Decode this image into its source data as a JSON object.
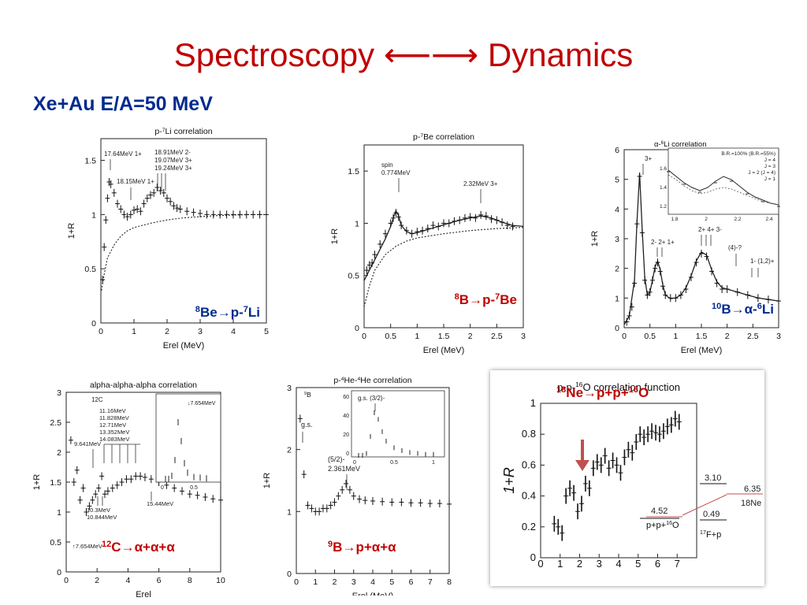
{
  "slide": {
    "title": "Spectroscopy ⟵⟶ Dynamics",
    "subtitle": "Xe+Au  E/A=50 MeV"
  },
  "colors": {
    "title": "#c00000",
    "subtitle": "#002a8f",
    "red_label": "#c00000",
    "blue_label": "#002a8f"
  },
  "chart_data": [
    {
      "id": "p-7Li",
      "type": "scatter",
      "title": "p-7Li correlation",
      "xlabel": "Erel (MeV)",
      "ylabel": "1+R",
      "xlim": [
        0,
        5
      ],
      "ylim": [
        0,
        1.7
      ],
      "xticks": [
        "0",
        "1",
        "2",
        "3",
        "4",
        "5"
      ],
      "yticks": [
        "0",
        "0.5",
        "1",
        "1.5"
      ],
      "label": {
        "pre": "8",
        "a": "Be",
        "arrow": "→",
        "b": "p-",
        "sup": "7",
        "c": "Li"
      },
      "annotations": [
        "17.64MeV 1+",
        "18.15MeV 1+",
        "18.91MeV 2-",
        "19.07MeV 3+",
        "19.24MeV 3+"
      ],
      "x": [
        0.05,
        0.1,
        0.15,
        0.2,
        0.25,
        0.3,
        0.4,
        0.5,
        0.6,
        0.7,
        0.8,
        0.9,
        1.0,
        1.1,
        1.2,
        1.3,
        1.4,
        1.5,
        1.6,
        1.7,
        1.8,
        1.9,
        2.0,
        2.1,
        2.2,
        2.3,
        2.4,
        2.6,
        2.8,
        3.0,
        3.2,
        3.4,
        3.6,
        3.8,
        4.0,
        4.2,
        4.4,
        4.6,
        4.8,
        5.0
      ],
      "y": [
        0.4,
        0.7,
        0.95,
        1.15,
        1.3,
        1.28,
        1.2,
        1.1,
        1.05,
        1.0,
        0.98,
        1.0,
        1.04,
        1.05,
        1.03,
        1.1,
        1.15,
        1.18,
        1.2,
        1.25,
        1.22,
        1.2,
        1.15,
        1.12,
        1.08,
        1.06,
        1.05,
        1.03,
        1.02,
        1.01,
        1.0,
        1.0,
        1.0,
        1.0,
        1.0,
        1.0,
        1.0,
        1.0,
        1.0,
        1.0
      ],
      "fit": {
        "style": "dotted",
        "x": [
          0.02,
          0.1,
          0.2,
          0.4,
          0.6,
          0.8,
          1.0,
          1.5,
          2,
          2.5,
          3,
          3.5,
          4,
          4.5,
          5
        ],
        "y": [
          0.3,
          0.45,
          0.6,
          0.72,
          0.8,
          0.85,
          0.88,
          0.92,
          0.95,
          0.97,
          0.98,
          0.99,
          0.995,
          1.0,
          1.0
        ]
      }
    },
    {
      "id": "p-7Be",
      "type": "scatter",
      "title": "p-7Be correlation",
      "xlabel": "Erel (MeV)",
      "ylabel": "1+R",
      "xlim": [
        0,
        3
      ],
      "ylim": [
        0,
        1.75
      ],
      "xticks": [
        "0",
        "0.5",
        "1",
        "1.5",
        "2",
        "2.5",
        "3"
      ],
      "yticks": [
        "0",
        "0.5",
        "1",
        "1.5"
      ],
      "label": {
        "pre": "8",
        "a": "B",
        "arrow": "→",
        "b": "p-",
        "sup": "7",
        "c": "Be"
      },
      "annotations": [
        "spin",
        "0.774MeV",
        "2.32MeV 3+"
      ],
      "x": [
        0.05,
        0.1,
        0.15,
        0.2,
        0.3,
        0.4,
        0.5,
        0.55,
        0.6,
        0.65,
        0.7,
        0.8,
        0.9,
        1.0,
        1.1,
        1.2,
        1.3,
        1.4,
        1.5,
        1.6,
        1.7,
        1.8,
        1.9,
        2.0,
        2.1,
        2.2,
        2.3,
        2.4,
        2.5,
        2.6,
        2.7,
        2.8
      ],
      "y": [
        0.55,
        0.6,
        0.62,
        0.7,
        0.8,
        0.9,
        1.0,
        1.05,
        1.1,
        1.06,
        0.98,
        0.93,
        0.9,
        0.92,
        0.93,
        0.95,
        0.98,
        0.97,
        1.0,
        1.0,
        1.02,
        1.03,
        1.05,
        1.06,
        1.05,
        1.08,
        1.07,
        1.04,
        1.03,
        1.01,
        0.98,
        0.97
      ],
      "fit": {
        "style": "solid",
        "x": [
          0.0,
          0.1,
          0.2,
          0.3,
          0.4,
          0.5,
          0.55,
          0.6,
          0.65,
          0.7,
          0.8,
          0.9,
          1.0,
          1.2,
          1.4,
          1.6,
          1.8,
          2.0,
          2.2,
          2.4,
          2.6,
          2.8,
          3.0
        ],
        "y": [
          0.45,
          0.55,
          0.65,
          0.75,
          0.85,
          0.97,
          1.05,
          1.12,
          1.07,
          0.98,
          0.92,
          0.9,
          0.91,
          0.94,
          0.97,
          1.0,
          1.03,
          1.05,
          1.07,
          1.05,
          1.01,
          0.98,
          0.97
        ]
      },
      "fit2": {
        "style": "dotted",
        "x": [
          0.0,
          0.1,
          0.2,
          0.4,
          0.6,
          0.8,
          1.0,
          1.5,
          2.0,
          2.5,
          3.0
        ],
        "y": [
          0.2,
          0.4,
          0.55,
          0.7,
          0.78,
          0.83,
          0.86,
          0.9,
          0.93,
          0.95,
          0.96
        ]
      }
    },
    {
      "id": "alpha-6Li",
      "type": "scatter",
      "title": "α-6Li correlation",
      "xlabel": "Erel (MeV)",
      "ylabel": "1+R",
      "xlim": [
        0,
        3
      ],
      "ylim": [
        0,
        6
      ],
      "xticks": [
        "0",
        "0.5",
        "1",
        "1.5",
        "2",
        "2.5",
        "3"
      ],
      "yticks": [
        "0",
        "1",
        "2",
        "3",
        "4",
        "5",
        "6"
      ],
      "label": {
        "pre": "10",
        "a": "B",
        "arrow": "→",
        "b": "α-",
        "sup": "6",
        "c": "Li"
      },
      "annotations": [
        "3+",
        "2- 2+ 1+",
        "2+ 4+ 3-",
        "(4)-?",
        "1- (1,2)+"
      ],
      "inset_legend": [
        "B.R.=100% (B.R.=55%)",
        "J = 4",
        "J = 3",
        "J = 2 (J = 4)",
        "J = 1"
      ],
      "inset_xticks": [
        "1.8",
        "2",
        "2.2",
        "2.4"
      ],
      "inset_yticks": [
        "1.2",
        "1.4",
        "1.6"
      ],
      "x": [
        0.05,
        0.1,
        0.15,
        0.2,
        0.25,
        0.3,
        0.35,
        0.4,
        0.45,
        0.5,
        0.55,
        0.6,
        0.65,
        0.7,
        0.75,
        0.8,
        0.9,
        1.0,
        1.1,
        1.2,
        1.3,
        1.4,
        1.5,
        1.6,
        1.7,
        1.8,
        1.9,
        2.0,
        2.2,
        2.4,
        2.6,
        2.8,
        3.0
      ],
      "y": [
        0.2,
        0.4,
        0.7,
        1.5,
        3.5,
        5.1,
        3.2,
        1.6,
        1.1,
        1.2,
        1.6,
        2.0,
        2.2,
        1.9,
        1.4,
        1.1,
        1.0,
        1.0,
        1.1,
        1.3,
        1.7,
        2.2,
        2.5,
        2.4,
        1.9,
        1.5,
        1.3,
        1.3,
        1.2,
        1.1,
        1.0,
        0.95,
        0.9
      ],
      "fit": {
        "style": "solid",
        "x": [
          0.0,
          0.1,
          0.2,
          0.25,
          0.3,
          0.35,
          0.4,
          0.45,
          0.5,
          0.55,
          0.6,
          0.65,
          0.7,
          0.75,
          0.8,
          0.9,
          1.0,
          1.1,
          1.2,
          1.3,
          1.4,
          1.5,
          1.6,
          1.7,
          1.8,
          1.9,
          2.0,
          2.2,
          2.4,
          2.6,
          2.8,
          3.0
        ],
        "y": [
          0.1,
          0.4,
          1.6,
          3.6,
          5.2,
          3.3,
          1.7,
          1.1,
          1.2,
          1.6,
          2.05,
          2.25,
          1.95,
          1.45,
          1.1,
          0.98,
          1.0,
          1.1,
          1.35,
          1.75,
          2.25,
          2.55,
          2.45,
          1.95,
          1.55,
          1.35,
          1.3,
          1.2,
          1.1,
          1.0,
          0.95,
          0.9
        ]
      }
    },
    {
      "id": "alpha-alpha-alpha",
      "type": "scatter",
      "title": "alpha-alpha-alpha correlation",
      "xlabel": "Erel",
      "ylabel": "1+R",
      "xlim": [
        0,
        10
      ],
      "ylim": [
        0,
        3
      ],
      "xticks": [
        "0",
        "2",
        "4",
        "6",
        "8",
        "10"
      ],
      "yticks": [
        "0",
        "0.5",
        "1",
        "1.5",
        "2",
        "2.5",
        "3"
      ],
      "label": {
        "pre": "12",
        "a": "C",
        "arrow": "→",
        "b": "α+α+α",
        "sup": "",
        "c": ""
      },
      "annotations": [
        "12C",
        "9.641MeV",
        "11.16MeV",
        "11.828MeV",
        "12.71MeV",
        "13.352MeV",
        "14.083MeV",
        "10.3MeV",
        "10.844MeV",
        "15.44MeV",
        "7.654MeV",
        "7.654MeV"
      ],
      "x": [
        0.3,
        0.5,
        0.7,
        0.9,
        1.1,
        1.3,
        1.5,
        1.7,
        1.9,
        2.1,
        2.3,
        2.5,
        2.7,
        3.0,
        3.3,
        3.6,
        3.9,
        4.2,
        4.5,
        4.8,
        5.1,
        5.5,
        6.0,
        6.5,
        7.0,
        7.5,
        8.0,
        8.5,
        9.0,
        9.5,
        10.0
      ],
      "y": [
        2.2,
        1.5,
        1.7,
        1.2,
        1.4,
        1.0,
        1.1,
        1.2,
        1.3,
        1.4,
        1.6,
        1.3,
        1.35,
        1.4,
        1.45,
        1.5,
        1.55,
        1.55,
        1.6,
        1.6,
        1.58,
        1.55,
        1.5,
        1.45,
        1.4,
        1.35,
        1.3,
        1.28,
        1.25,
        1.22,
        1.2
      ],
      "inset_xticks": [
        "0",
        "0.5"
      ],
      "inset_x": [
        0.05,
        0.1,
        0.15,
        0.2,
        0.25,
        0.3,
        0.35,
        0.4,
        0.5,
        0.6,
        0.7
      ],
      "inset_y": [
        0.0,
        0.0,
        0.05,
        0.3,
        0.9,
        0.6,
        0.25,
        0.1,
        0.03,
        0.02,
        0.01
      ]
    },
    {
      "id": "p-4He-4He",
      "type": "scatter",
      "title": "p-4He-4He correlation",
      "xlabel": "Erel (MeV)",
      "ylabel": "1+R",
      "xlim": [
        0,
        8
      ],
      "ylim": [
        0,
        3
      ],
      "xticks": [
        "0",
        "1",
        "2",
        "3",
        "4",
        "5",
        "6",
        "7",
        "8"
      ],
      "yticks": [
        "0",
        "1",
        "2",
        "3"
      ],
      "label": {
        "pre": "9",
        "a": "B",
        "arrow": "→",
        "b": "p+α+α",
        "sup": "",
        "c": ""
      },
      "annotations": [
        "9B",
        "g.s.",
        "(5/2)-",
        "2.361MeV",
        "g.s. (3/2)-"
      ],
      "inset_yticks": [
        "0",
        "20",
        "40",
        "60"
      ],
      "inset_xticks": [
        "0",
        "0.5",
        "1"
      ],
      "x": [
        0.2,
        0.4,
        0.6,
        0.8,
        1.0,
        1.2,
        1.4,
        1.6,
        1.8,
        2.0,
        2.2,
        2.4,
        2.6,
        2.8,
        3.0,
        3.3,
        3.6,
        4.0,
        4.5,
        5.0,
        5.5,
        6.0,
        6.5,
        7.0,
        7.5,
        8.0
      ],
      "y": [
        2.5,
        1.6,
        1.1,
        1.05,
        1.0,
        1.0,
        1.05,
        1.05,
        1.1,
        1.15,
        1.25,
        1.35,
        1.45,
        1.35,
        1.25,
        1.2,
        1.18,
        1.17,
        1.16,
        1.15,
        1.15,
        1.14,
        1.14,
        1.13,
        1.13,
        1.12
      ],
      "inset_x": [
        0.05,
        0.1,
        0.15,
        0.2,
        0.25,
        0.3,
        0.35,
        0.4,
        0.5,
        0.6,
        0.7,
        0.8,
        0.9,
        1.0
      ],
      "inset_y": [
        0,
        0,
        2,
        20,
        45,
        38,
        25,
        15,
        8,
        5,
        3,
        2,
        1,
        1
      ]
    },
    {
      "id": "p-p-16O",
      "type": "scatter",
      "title": "p-p-16O correlation function",
      "xlabel": "",
      "ylabel": "1+R",
      "xlim": [
        0,
        8
      ],
      "ylim": [
        0,
        1
      ],
      "xticks": [
        "0",
        "1",
        "2",
        "3",
        "4",
        "5",
        "6",
        "7"
      ],
      "yticks": [
        "0",
        "0.2",
        "0.4",
        "0.6",
        "0.8",
        "1"
      ],
      "label": {
        "pre": "18",
        "a": "Ne",
        "arrow": "→",
        "b": "p+p+",
        "sup": "16",
        "c": "O"
      },
      "level_scheme": [
        "3.10",
        "6.35",
        "18Ne",
        "4.52",
        "0.49",
        "p+p+16O",
        "17F+p"
      ],
      "x": [
        0.7,
        0.9,
        1.1,
        1.3,
        1.5,
        1.7,
        1.9,
        2.1,
        2.3,
        2.5,
        2.7,
        2.9,
        3.1,
        3.3,
        3.5,
        3.7,
        3.9,
        4.1,
        4.3,
        4.5,
        4.7,
        4.9,
        5.1,
        5.3,
        5.5,
        5.7,
        5.9,
        6.1,
        6.3,
        6.5,
        6.7,
        6.9,
        7.1
      ],
      "y": [
        0.22,
        0.2,
        0.16,
        0.4,
        0.45,
        0.42,
        0.3,
        0.35,
        0.48,
        0.45,
        0.58,
        0.62,
        0.6,
        0.66,
        0.58,
        0.63,
        0.6,
        0.55,
        0.65,
        0.7,
        0.68,
        0.75,
        0.8,
        0.78,
        0.8,
        0.82,
        0.81,
        0.8,
        0.82,
        0.85,
        0.86,
        0.9,
        0.88
      ]
    }
  ]
}
